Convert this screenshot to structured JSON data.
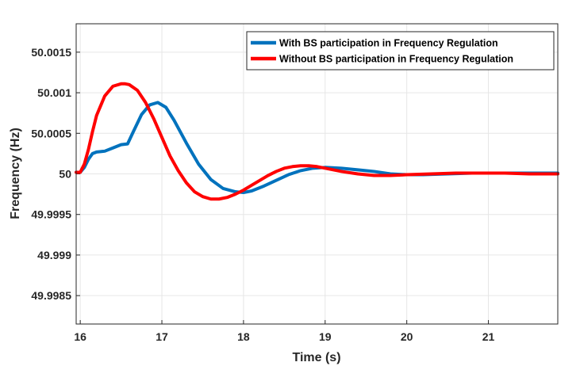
{
  "chart_data": {
    "type": "line",
    "title": "",
    "xlabel": "Time (s)",
    "ylabel": "Frequency (Hz)",
    "xlim": [
      15.95,
      21.85
    ],
    "ylim": [
      49.99815,
      50.00185
    ],
    "xticks": [
      16,
      17,
      18,
      19,
      20,
      21
    ],
    "xtick_labels": [
      "16",
      "17",
      "18",
      "19",
      "20",
      "21"
    ],
    "yticks": [
      49.9985,
      49.999,
      49.9995,
      50.0,
      50.0005,
      50.001,
      50.0015
    ],
    "ytick_labels": [
      "49.9985",
      "49.999",
      "49.9995",
      "50",
      "50.0005",
      "50.001",
      "50.0015"
    ],
    "grid": true,
    "legend_position": "top-right",
    "series": [
      {
        "name": "With BS participation in Frequency Regulation",
        "color": "#0072BD",
        "x": [
          15.95,
          16.0,
          16.05,
          16.1,
          16.15,
          16.2,
          16.3,
          16.4,
          16.5,
          16.58,
          16.65,
          16.75,
          16.85,
          16.95,
          17.05,
          17.15,
          17.3,
          17.45,
          17.6,
          17.75,
          17.9,
          18.0,
          18.1,
          18.25,
          18.4,
          18.55,
          18.7,
          18.85,
          19.0,
          19.2,
          19.4,
          19.6,
          19.8,
          20.0,
          20.2,
          20.5,
          20.8,
          21.1,
          21.4,
          21.7,
          21.85
        ],
        "y": [
          50.00002,
          50.00002,
          50.00008,
          50.00018,
          50.00025,
          50.00027,
          50.00028,
          50.00032,
          50.00036,
          50.00037,
          50.00052,
          50.00073,
          50.00085,
          50.00088,
          50.00082,
          50.00066,
          50.00038,
          50.00012,
          49.99993,
          49.99982,
          49.99978,
          49.99977,
          49.99979,
          49.99985,
          49.99992,
          49.99999,
          50.00004,
          50.00007,
          50.00008,
          50.00007,
          50.00005,
          50.00003,
          50.0,
          49.99999,
          49.99999,
          50.0,
          50.00001,
          50.00001,
          50.00001,
          50.00001,
          50.00001
        ]
      },
      {
        "name": "Without BS participation in Frequency Regulation",
        "color": "#FF0000",
        "x": [
          15.95,
          16.0,
          16.05,
          16.1,
          16.15,
          16.2,
          16.3,
          16.4,
          16.5,
          16.55,
          16.6,
          16.7,
          16.8,
          16.9,
          17.0,
          17.1,
          17.2,
          17.3,
          17.4,
          17.5,
          17.6,
          17.7,
          17.8,
          17.9,
          18.0,
          18.1,
          18.2,
          18.3,
          18.4,
          18.5,
          18.6,
          18.7,
          18.8,
          18.9,
          19.0,
          19.2,
          19.4,
          19.6,
          19.8,
          20.0,
          20.3,
          20.6,
          20.9,
          21.2,
          21.5,
          21.85
        ],
        "y": [
          50.00002,
          50.00002,
          50.00012,
          50.0003,
          50.00052,
          50.00072,
          50.00096,
          50.00108,
          50.00111,
          50.00111,
          50.0011,
          50.00103,
          50.00088,
          50.00068,
          50.00045,
          50.00022,
          50.00004,
          49.99989,
          49.99978,
          49.99972,
          49.99969,
          49.99969,
          49.99971,
          49.99975,
          49.9998,
          49.99986,
          49.99992,
          49.99998,
          50.00003,
          50.00007,
          50.00009,
          50.0001,
          50.0001,
          50.00009,
          50.00007,
          50.00003,
          50.0,
          49.99998,
          49.99998,
          49.99999,
          50.0,
          50.00001,
          50.00001,
          50.00001,
          50.0,
          50.0
        ]
      }
    ]
  }
}
